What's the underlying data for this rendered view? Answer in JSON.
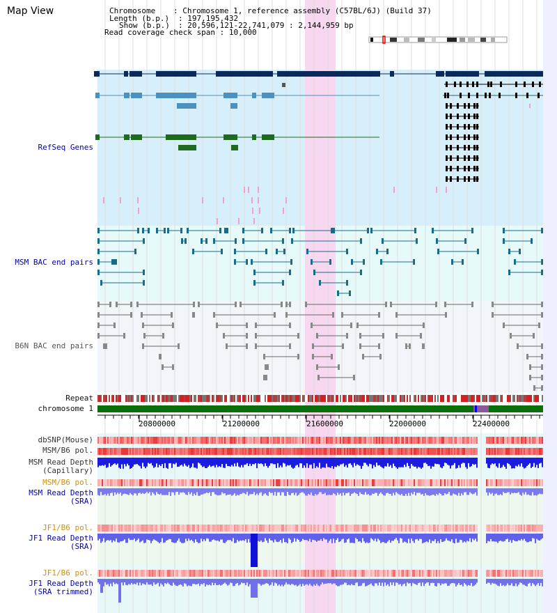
{
  "title": "Map View",
  "info": {
    "chromosome_label": "Chromosome",
    "chromosome_value": "Chromosome 1, reference assembly (C57BL/6J) (Build 37)",
    "length_label": "Length (b.p.)",
    "length_value": "197,195,432",
    "show_label": "Show (b.p.)",
    "show_value": "20,596,121-22,741,079 : 2,144,959 bp",
    "coverage_label": "Read coverage check span",
    "coverage_value": "10,000"
  },
  "tracks": {
    "refseq": "RefSeq Genes",
    "msm_bac": "MSM BAC end pairs",
    "b6n_bac": "B6N BAC end pairs",
    "repeat": "Repeat",
    "chromosome": "chromosome 1",
    "dbsnp": "dbSNP(Mouse)",
    "msm_b6_pol_1": "MSM/B6 pol.",
    "msm_read_depth_cap_1": "MSM Read Depth",
    "msm_read_depth_cap_2": "(Capillary)",
    "msm_b6_pol_2": "MSM/B6 pol.",
    "msm_read_depth_sra_1": "MSM Read Depth",
    "msm_read_depth_sra_2": "(SRA)",
    "jf1_b6_pol_1": "JF1/B6 pol.",
    "jf1_read_depth_sra_1": "JF1 Read Depth",
    "jf1_read_depth_sra_2": "(SRA)",
    "jf1_b6_pol_2": "JF1/B6 pol.",
    "jf1_read_depth_trim_1": "JF1 Read Depth",
    "jf1_read_depth_trim_2": "(SRA trimmed)"
  },
  "axis": {
    "ticks": [
      "20800000",
      "21200000",
      "21600000",
      "22000000",
      "22400000"
    ]
  },
  "colors": {
    "refseq_bg": "#d6effa",
    "bac_bg": "#e6fafa",
    "b6n_bg": "#f2f6fa",
    "highlight": "#f8d8f0",
    "refseq_dark": "#0a2a5a",
    "refseq_mid": "#4a90c0",
    "refseq_green": "#1e6a1e",
    "msm_bac_line": "#1a6a8a",
    "b6n_bac_line": "#666666",
    "chrom_green": "#0a6e0a",
    "read_depth_blue": "#1e1ee6",
    "read_depth_light": "#7a7aee"
  }
}
